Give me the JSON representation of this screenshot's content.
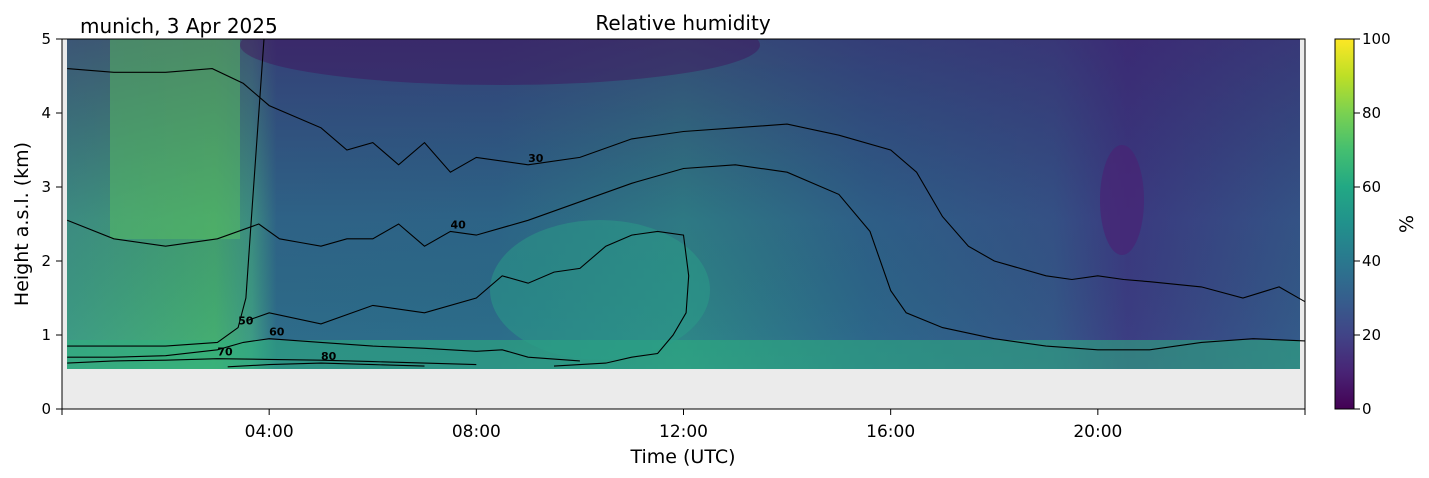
{
  "header": {
    "location_date": "munich, 3 Apr 2025",
    "title": "Relative humidity"
  },
  "chart_data": {
    "type": "heatmap",
    "title": "Relative humidity",
    "xlabel": "Time (UTC)",
    "ylabel": "Height a.s.l. (km)",
    "xlim_hours": [
      0,
      24
    ],
    "ylim_km": [
      0,
      5
    ],
    "x_ticks": [
      {
        "hour": 4,
        "label": "04:00"
      },
      {
        "hour": 8,
        "label": "08:00"
      },
      {
        "hour": 12,
        "label": "12:00"
      },
      {
        "hour": 16,
        "label": "16:00"
      },
      {
        "hour": 20,
        "label": "20:00"
      }
    ],
    "y_ticks": [
      {
        "value": 0,
        "label": "0"
      },
      {
        "value": 1,
        "label": "1"
      },
      {
        "value": 2,
        "label": "2"
      },
      {
        "value": 3,
        "label": "3"
      },
      {
        "value": 4,
        "label": "4"
      },
      {
        "value": 5,
        "label": "5"
      }
    ],
    "data_floor_km": 0.55,
    "no_data_color": "#ebebeb",
    "colormap": "viridis",
    "colorbar": {
      "label": "%",
      "range": [
        0,
        100
      ],
      "ticks": [
        {
          "value": 0,
          "label": "0"
        },
        {
          "value": 20,
          "label": "20"
        },
        {
          "value": 40,
          "label": "40"
        },
        {
          "value": 60,
          "label": "60"
        },
        {
          "value": 80,
          "label": "80"
        },
        {
          "value": 100,
          "label": "100"
        }
      ]
    },
    "contours": [
      {
        "level": 30,
        "label": "30",
        "points": [
          [
            0.1,
            4.6
          ],
          [
            1,
            4.55
          ],
          [
            2,
            4.55
          ],
          [
            2.9,
            4.6
          ],
          [
            3.5,
            4.4
          ],
          [
            4,
            4.1
          ],
          [
            5,
            3.8
          ],
          [
            5.5,
            3.5
          ],
          [
            6,
            3.6
          ],
          [
            6.5,
            3.3
          ],
          [
            7,
            3.6
          ],
          [
            7.5,
            3.2
          ],
          [
            8,
            3.4
          ],
          [
            9,
            3.3
          ],
          [
            10,
            3.4
          ],
          [
            11,
            3.65
          ],
          [
            12,
            3.75
          ],
          [
            13,
            3.8
          ],
          [
            14,
            3.85
          ],
          [
            15,
            3.7
          ],
          [
            16,
            3.5
          ],
          [
            16.5,
            3.2
          ],
          [
            17,
            2.6
          ],
          [
            17.5,
            2.2
          ],
          [
            18,
            2.0
          ],
          [
            19,
            1.8
          ],
          [
            19.5,
            1.75
          ],
          [
            20,
            1.8
          ],
          [
            20.5,
            1.75
          ],
          [
            21,
            1.72
          ],
          [
            22,
            1.65
          ],
          [
            22.8,
            1.5
          ],
          [
            23.5,
            1.65
          ],
          [
            24,
            1.45
          ]
        ]
      },
      {
        "level": 40,
        "label": "40",
        "points": [
          [
            0.1,
            2.55
          ],
          [
            1,
            2.3
          ],
          [
            2,
            2.2
          ],
          [
            3,
            2.3
          ],
          [
            3.8,
            2.5
          ],
          [
            4.2,
            2.3
          ],
          [
            4.6,
            2.25
          ],
          [
            5,
            2.2
          ],
          [
            5.5,
            2.3
          ],
          [
            6,
            2.3
          ],
          [
            6.5,
            2.5
          ],
          [
            7,
            2.2
          ],
          [
            7.5,
            2.4
          ],
          [
            8,
            2.35
          ],
          [
            9,
            2.55
          ],
          [
            10,
            2.8
          ],
          [
            11,
            3.05
          ],
          [
            12,
            3.25
          ],
          [
            13,
            3.3
          ],
          [
            14,
            3.2
          ],
          [
            15,
            2.9
          ],
          [
            15.6,
            2.4
          ],
          [
            16,
            1.6
          ],
          [
            16.3,
            1.3
          ],
          [
            17,
            1.1
          ],
          [
            18,
            0.95
          ],
          [
            19,
            0.85
          ],
          [
            20,
            0.8
          ],
          [
            21,
            0.8
          ],
          [
            22,
            0.9
          ],
          [
            23,
            0.95
          ],
          [
            24,
            0.92
          ]
        ]
      },
      {
        "level": 50,
        "label": "50",
        "points": [
          [
            0.1,
            0.85
          ],
          [
            1,
            0.85
          ],
          [
            2,
            0.85
          ],
          [
            3,
            0.9
          ],
          [
            3.4,
            1.1
          ],
          [
            3.55,
            1.5
          ],
          [
            3.65,
            2.5
          ],
          [
            3.75,
            3.5
          ],
          [
            3.85,
            4.5
          ],
          [
            3.9,
            5.0
          ]
        ]
      },
      {
        "level": 50,
        "label": "",
        "points": [
          [
            3.6,
            1.2
          ],
          [
            4,
            1.3
          ],
          [
            5,
            1.15
          ],
          [
            6,
            1.4
          ],
          [
            7,
            1.3
          ],
          [
            8,
            1.5
          ],
          [
            8.5,
            1.8
          ],
          [
            9,
            1.7
          ],
          [
            9.5,
            1.85
          ],
          [
            10,
            1.9
          ],
          [
            10.5,
            2.2
          ],
          [
            11,
            2.35
          ],
          [
            11.5,
            2.4
          ],
          [
            12,
            2.35
          ],
          [
            12.1,
            1.8
          ],
          [
            12.05,
            1.3
          ],
          [
            11.8,
            1.0
          ],
          [
            11.5,
            0.75
          ],
          [
            11,
            0.7
          ],
          [
            10.5,
            0.62
          ],
          [
            9.5,
            0.58
          ]
        ]
      },
      {
        "level": 60,
        "label": "60",
        "points": [
          [
            0.1,
            0.7
          ],
          [
            1,
            0.7
          ],
          [
            2,
            0.72
          ],
          [
            3,
            0.8
          ],
          [
            3.5,
            0.9
          ],
          [
            4,
            0.95
          ],
          [
            5,
            0.9
          ],
          [
            6,
            0.85
          ],
          [
            7,
            0.82
          ],
          [
            8,
            0.78
          ],
          [
            8.5,
            0.8
          ],
          [
            9,
            0.7
          ],
          [
            10,
            0.65
          ]
        ]
      },
      {
        "level": 70,
        "label": "70",
        "points": [
          [
            0.1,
            0.62
          ],
          [
            1,
            0.65
          ],
          [
            2,
            0.66
          ],
          [
            3,
            0.68
          ],
          [
            4,
            0.67
          ],
          [
            5,
            0.66
          ],
          [
            6,
            0.64
          ],
          [
            7,
            0.62
          ],
          [
            8,
            0.6
          ]
        ]
      },
      {
        "level": 80,
        "label": "80",
        "points": [
          [
            3.2,
            0.57
          ],
          [
            4,
            0.6
          ],
          [
            5,
            0.62
          ],
          [
            6,
            0.6
          ],
          [
            7,
            0.58
          ]
        ]
      }
    ]
  }
}
